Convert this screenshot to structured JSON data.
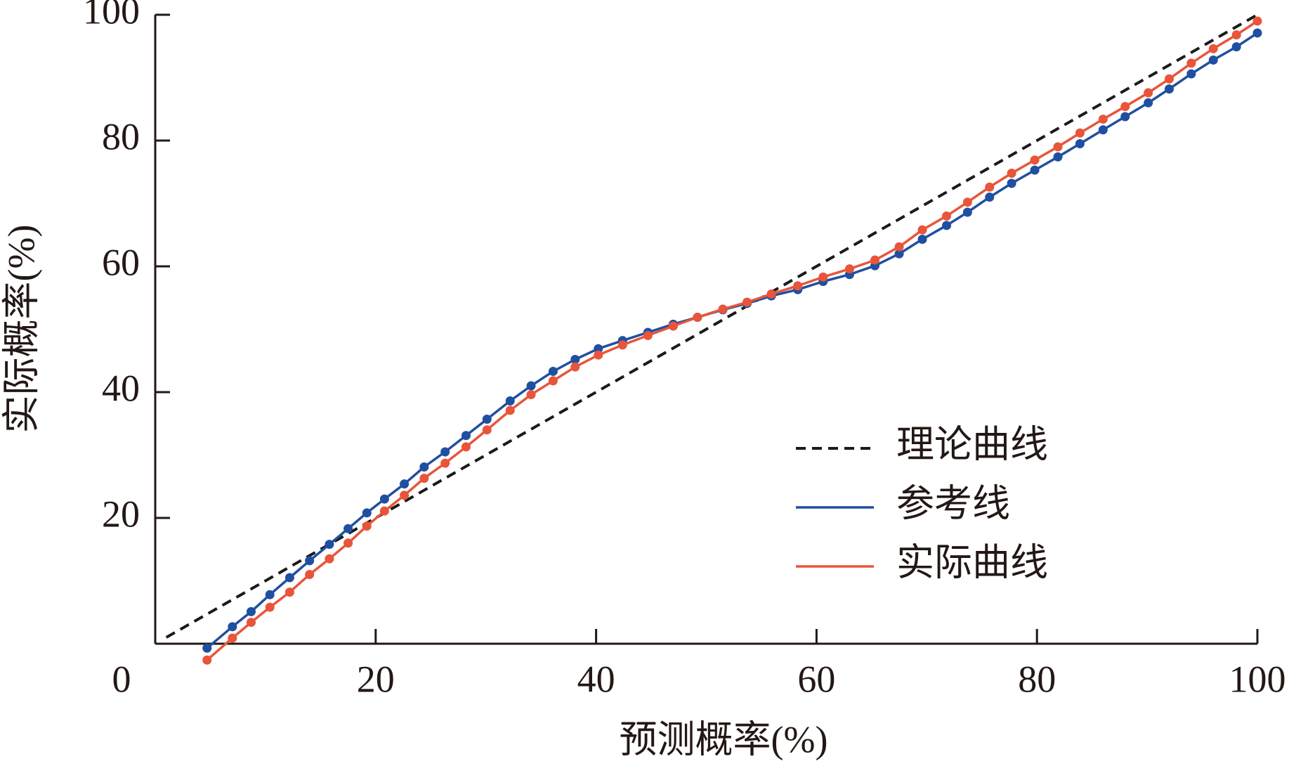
{
  "chart_data": {
    "type": "line",
    "xlabel": "预测概率(%)",
    "ylabel": "实际概率(%)",
    "xlim": [
      0,
      100
    ],
    "ylim": [
      0,
      100
    ],
    "xticks": [
      0,
      20,
      40,
      60,
      80,
      100
    ],
    "yticks": [
      20,
      40,
      60,
      80,
      100
    ],
    "x": [
      4.7,
      7.0,
      8.7,
      10.4,
      12.2,
      14.0,
      15.8,
      17.5,
      19.2,
      20.8,
      22.6,
      24.4,
      26.3,
      28.2,
      30.1,
      32.2,
      34.1,
      36.1,
      38.1,
      40.2,
      42.4,
      44.7,
      47.0,
      49.2,
      51.5,
      53.7,
      55.9,
      58.3,
      60.6,
      63.0,
      65.3,
      67.5,
      69.6,
      71.8,
      73.7,
      75.7,
      77.7,
      79.8,
      81.9,
      83.9,
      86.0,
      88.0,
      90.1,
      92.0,
      94.0,
      96.0,
      98.1,
      100
    ],
    "legend": "lower right",
    "series": [
      {
        "name": "理论曲线",
        "color": "#1a1a1a",
        "linestyle": "dashed",
        "marker": false,
        "x": [
          1,
          100
        ],
        "values": [
          1,
          100
        ]
      },
      {
        "name": "参考线",
        "color": "#1f4fa0",
        "linestyle": "solid",
        "marker": true,
        "values": [
          -0.7,
          2.7,
          5.1,
          7.8,
          10.5,
          13.2,
          15.8,
          18.3,
          20.8,
          23.0,
          25.4,
          28.1,
          30.5,
          33.1,
          35.7,
          38.6,
          41.0,
          43.3,
          45.2,
          46.9,
          48.2,
          49.5,
          50.8,
          51.9,
          53.1,
          54.1,
          55.3,
          56.3,
          57.6,
          58.7,
          60.1,
          62.0,
          64.3,
          66.5,
          68.6,
          71.0,
          73.2,
          75.3,
          77.4,
          79.5,
          81.7,
          83.8,
          86.0,
          88.2,
          90.6,
          92.8,
          94.9,
          97.1
        ]
      },
      {
        "name": "实际曲线",
        "color": "#e8553a",
        "linestyle": "solid",
        "marker": true,
        "values": [
          -2.6,
          0.9,
          3.4,
          5.8,
          8.2,
          11.0,
          13.5,
          16.0,
          18.7,
          21.1,
          23.6,
          26.3,
          28.7,
          31.3,
          34.0,
          37.1,
          39.6,
          41.8,
          44.0,
          45.9,
          47.5,
          49.0,
          50.5,
          51.9,
          53.2,
          54.3,
          55.6,
          56.9,
          58.3,
          59.6,
          61.0,
          63.1,
          65.8,
          68.0,
          70.2,
          72.6,
          74.8,
          76.9,
          79.0,
          81.2,
          83.4,
          85.4,
          87.6,
          89.8,
          92.3,
          94.6,
          96.8,
          99.0
        ]
      }
    ]
  }
}
